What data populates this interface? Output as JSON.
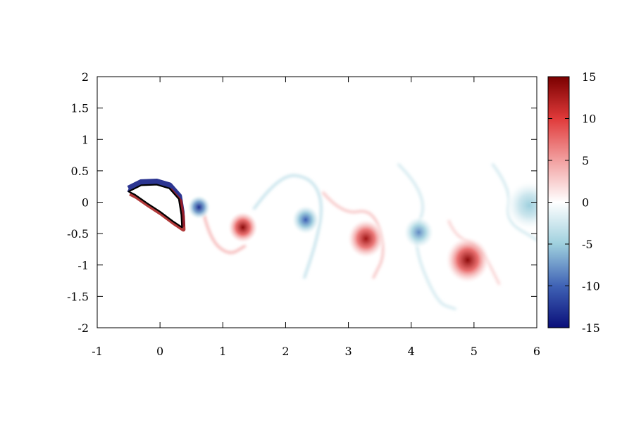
{
  "chart_data": {
    "type": "heatmap",
    "title": "",
    "xlabel": "",
    "ylabel": "",
    "xlim": [
      -1,
      6
    ],
    "ylim": [
      -2,
      2
    ],
    "x_ticks": [
      "-1",
      "0",
      "1",
      "2",
      "3",
      "4",
      "5",
      "6"
    ],
    "y_ticks": [
      "2",
      "1.5",
      "1",
      "0.5",
      "0",
      "-0.5",
      "-1",
      "-1.5",
      "-2"
    ],
    "colorbar": {
      "range": [
        -15,
        15
      ],
      "ticks": [
        "15",
        "10",
        "5",
        "0",
        "-5",
        "-10",
        "-15"
      ],
      "colors": [
        "#0a0f7a",
        "#3f62b5",
        "#9fd0de",
        "#ffffff",
        "#f2a0a0",
        "#e03a3a",
        "#7a0000"
      ]
    },
    "vortices": [
      {
        "x": 0.62,
        "y": -0.08,
        "value": -13,
        "radius": 0.1
      },
      {
        "x": 1.32,
        "y": -0.4,
        "value": 14,
        "radius": 0.13
      },
      {
        "x": 2.32,
        "y": -0.28,
        "value": -10,
        "radius": 0.12
      },
      {
        "x": 3.28,
        "y": -0.58,
        "value": 13,
        "radius": 0.16
      },
      {
        "x": 4.12,
        "y": -0.48,
        "value": -8,
        "radius": 0.13
      },
      {
        "x": 4.9,
        "y": -0.92,
        "value": 14,
        "radius": 0.19
      },
      {
        "x": 5.88,
        "y": -0.05,
        "value": -5,
        "radius": 0.2
      }
    ],
    "filaments": [
      {
        "points": [
          [
            0.7,
            -0.2
          ],
          [
            0.8,
            -0.6
          ],
          [
            1.1,
            -0.85
          ],
          [
            1.35,
            -0.7
          ]
        ],
        "value": 5
      },
      {
        "points": [
          [
            1.5,
            -0.1
          ],
          [
            1.9,
            0.45
          ],
          [
            2.4,
            0.4
          ],
          [
            2.6,
            0.0
          ],
          [
            2.5,
            -0.6
          ],
          [
            2.3,
            -1.2
          ]
        ],
        "value": -4
      },
      {
        "points": [
          [
            2.6,
            0.15
          ],
          [
            2.9,
            -0.2
          ],
          [
            3.4,
            -0.1
          ],
          [
            3.6,
            -0.8
          ],
          [
            3.4,
            -1.2
          ]
        ],
        "value": 4
      },
      {
        "points": [
          [
            3.8,
            0.6
          ],
          [
            4.3,
            0.1
          ],
          [
            4.0,
            -0.6
          ],
          [
            4.4,
            -1.6
          ],
          [
            4.7,
            -1.7
          ]
        ],
        "value": -3
      },
      {
        "points": [
          [
            4.6,
            -0.3
          ],
          [
            4.7,
            -0.55
          ],
          [
            5.1,
            -0.7
          ],
          [
            5.4,
            -1.3
          ]
        ],
        "value": 3
      },
      {
        "points": [
          [
            5.3,
            0.6
          ],
          [
            5.6,
            0.2
          ],
          [
            5.5,
            -0.3
          ],
          [
            6.0,
            -0.6
          ]
        ],
        "value": -3
      }
    ],
    "airfoil": [
      [
        -0.5,
        0.17
      ],
      [
        -0.3,
        0.27
      ],
      [
        -0.05,
        0.28
      ],
      [
        0.15,
        0.22
      ],
      [
        0.3,
        0.05
      ],
      [
        0.34,
        -0.2
      ],
      [
        0.35,
        -0.4
      ],
      [
        0.2,
        -0.3
      ],
      [
        0.0,
        -0.15
      ],
      [
        -0.2,
        -0.02
      ],
      [
        -0.4,
        0.12
      ],
      [
        -0.5,
        0.17
      ]
    ],
    "airfoil_shear": {
      "upper_value": -14,
      "lower_value": 13
    }
  }
}
